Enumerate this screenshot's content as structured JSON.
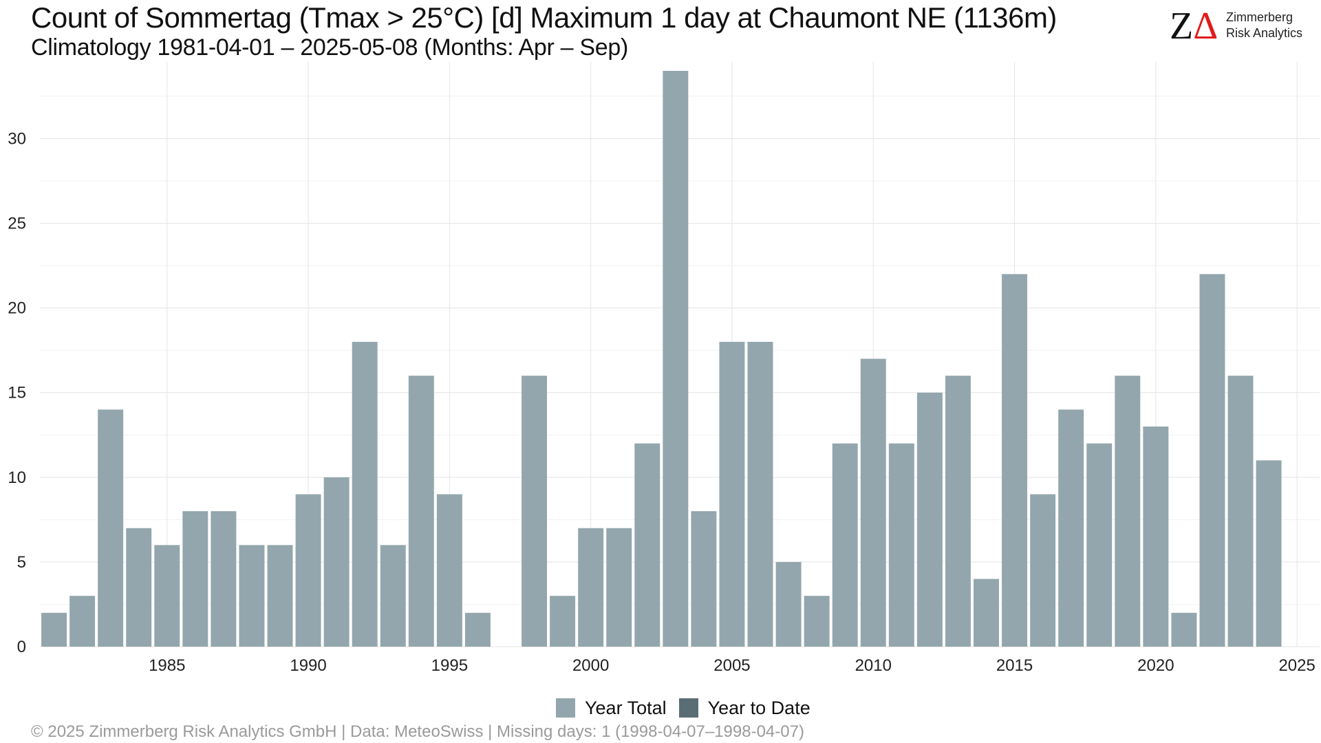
{
  "header": {
    "title": "Count of Sommertag (Tmax > 25°C) [d] Maximum 1 day at Chaumont  NE (1136m)",
    "subtitle": "Climatology 1981-04-01 – 2025-05-08 (Months: Apr – Sep)"
  },
  "logo": {
    "mark_z": "Z",
    "mark_delta": "Δ",
    "name_line1": "Zimmerberg",
    "name_line2": "Risk Analytics"
  },
  "legend": {
    "items": [
      {
        "label": "Year Total",
        "color": "#93a6ad"
      },
      {
        "label": "Year to Date",
        "color": "#5a6d74"
      }
    ]
  },
  "footer": {
    "text": "©  2025 Zimmerberg Risk Analytics GmbH | Data: MeteoSwiss | Missing days: 1 (1998-04-07–1998-04-07)"
  },
  "chart_data": {
    "type": "bar",
    "title": "Count of Sommertag (Tmax > 25°C) [d] Maximum 1 day at Chaumont  NE (1136m)",
    "xlabel": "",
    "ylabel": "",
    "x": [
      1981,
      1982,
      1983,
      1984,
      1985,
      1986,
      1987,
      1988,
      1989,
      1990,
      1991,
      1992,
      1993,
      1994,
      1995,
      1996,
      1997,
      1998,
      1999,
      2000,
      2001,
      2002,
      2003,
      2004,
      2005,
      2006,
      2007,
      2008,
      2009,
      2010,
      2011,
      2012,
      2013,
      2014,
      2015,
      2016,
      2017,
      2018,
      2019,
      2020,
      2021,
      2022,
      2023,
      2024
    ],
    "series": [
      {
        "name": "Year Total",
        "color": "#93a6ad",
        "values": [
          2,
          3,
          14,
          7,
          6,
          8,
          8,
          6,
          6,
          9,
          10,
          18,
          6,
          16,
          9,
          2,
          null,
          16,
          3,
          7,
          7,
          12,
          34,
          8,
          18,
          18,
          5,
          3,
          12,
          17,
          12,
          15,
          16,
          4,
          22,
          9,
          14,
          12,
          16,
          13,
          2,
          22,
          16,
          11
        ]
      },
      {
        "name": "Year to Date",
        "color": "#5a6d74",
        "values": [
          0,
          0,
          0,
          0,
          0,
          0,
          0,
          0,
          0,
          0,
          0,
          0,
          0,
          0,
          0,
          0,
          null,
          0,
          0,
          0,
          0,
          0,
          0,
          0,
          0,
          0,
          0,
          0,
          0,
          0,
          0,
          0,
          0,
          0,
          0,
          0,
          0,
          0,
          0,
          0,
          0,
          0,
          0,
          0
        ]
      }
    ],
    "xlim": [
      1980.5,
      2025.8
    ],
    "ylim": [
      0,
      34
    ],
    "x_ticks": [
      1985,
      1990,
      1995,
      2000,
      2005,
      2010,
      2015,
      2020,
      2025
    ],
    "y_ticks": [
      0,
      5,
      10,
      15,
      20,
      25,
      30
    ],
    "grid": true,
    "legend_position": "bottom"
  }
}
